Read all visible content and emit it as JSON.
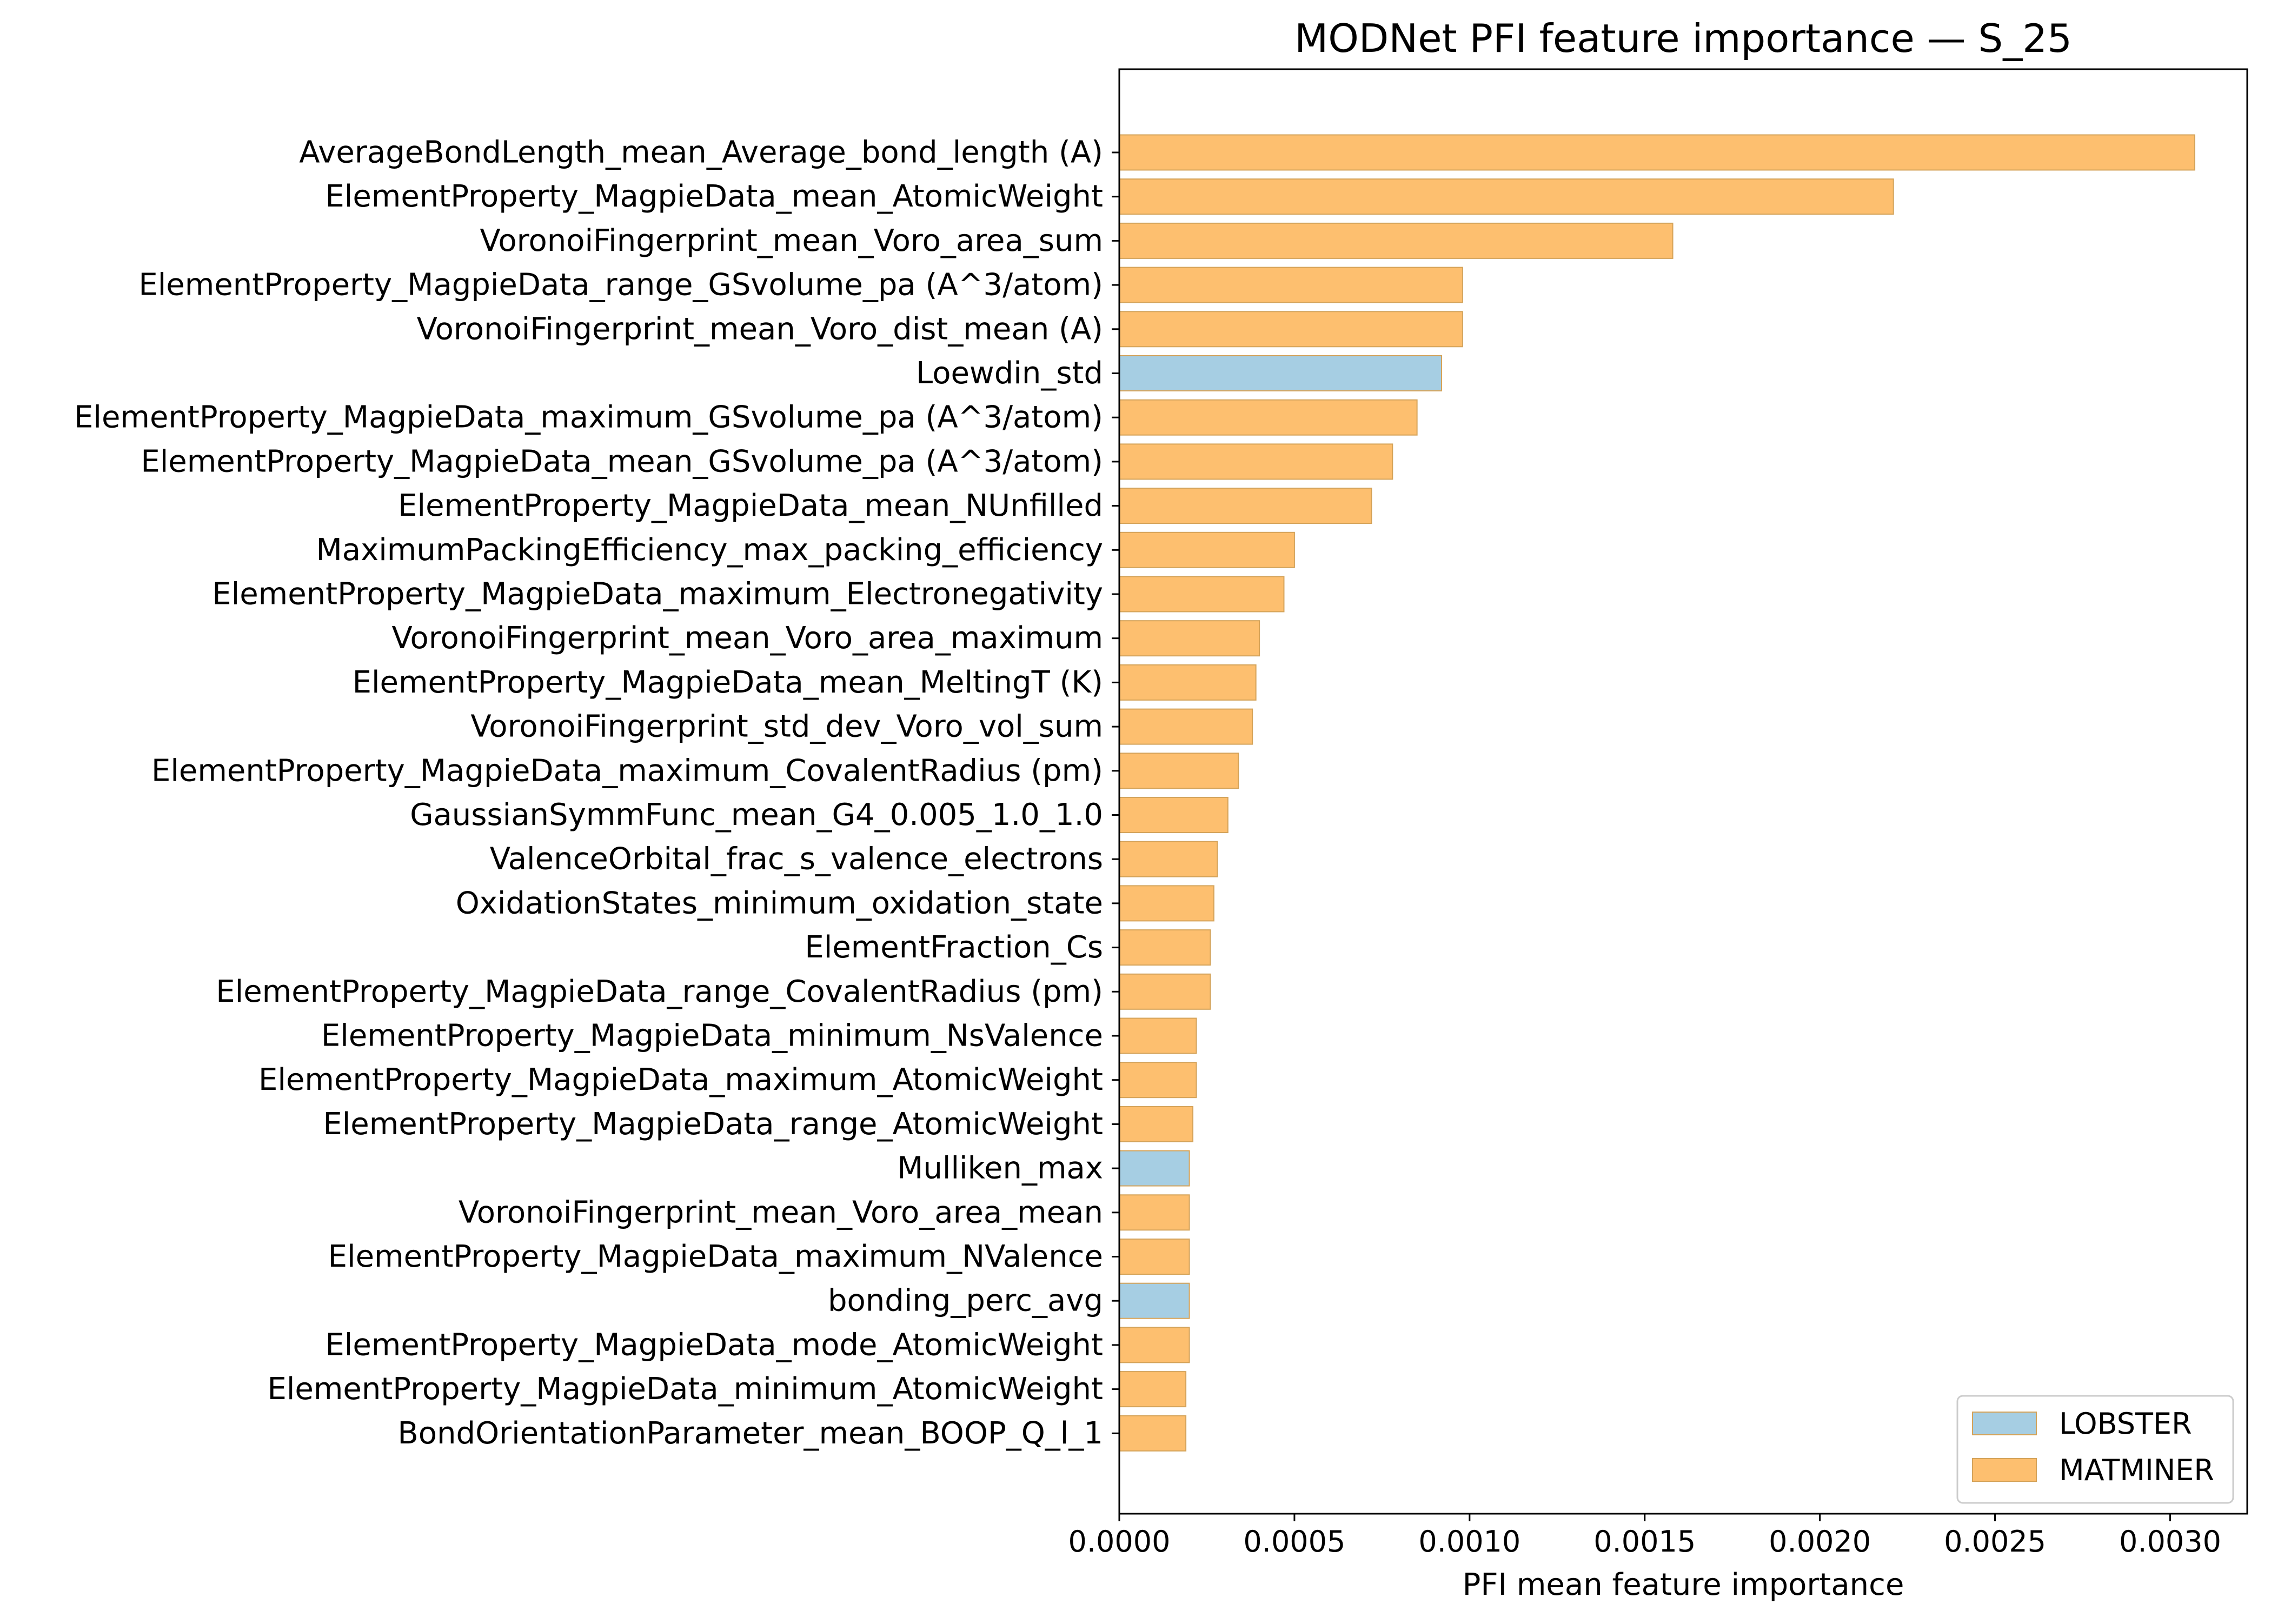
{
  "chart_data": {
    "type": "bar",
    "orientation": "horizontal",
    "title": "MODNet PFI feature importance — S_25",
    "xlabel": "PFI mean feature importance",
    "ylabel": "",
    "xlim": [
      0,
      0.00322
    ],
    "x_ticks": [
      0.0,
      0.0005,
      0.001,
      0.0015,
      0.002,
      0.0025,
      0.003
    ],
    "x_tick_labels": [
      "0.0000",
      "0.0005",
      "0.0010",
      "0.0015",
      "0.0020",
      "0.0025",
      "0.0030"
    ],
    "grid": false,
    "legend": {
      "position": "bottom-right",
      "entries": [
        {
          "name": "LOBSTER",
          "color": "#a6cee3"
        },
        {
          "name": "MATMINER",
          "color": "#fdbf6f"
        }
      ]
    },
    "colors": {
      "LOBSTER": "#a6cee3",
      "MATMINER": "#fdbf6f",
      "bar_edge": "#d4a35a"
    },
    "bars": [
      {
        "label": "AverageBondLength_mean_Average_bond_length (A)",
        "value": 0.00307,
        "group": "MATMINER"
      },
      {
        "label": "ElementProperty_MagpieData_mean_AtomicWeight",
        "value": 0.00221,
        "group": "MATMINER"
      },
      {
        "label": "VoronoiFingerprint_mean_Voro_area_sum",
        "value": 0.00158,
        "group": "MATMINER"
      },
      {
        "label": "ElementProperty_MagpieData_range_GSvolume_pa (A^3/atom)",
        "value": 0.00098,
        "group": "MATMINER"
      },
      {
        "label": "VoronoiFingerprint_mean_Voro_dist_mean (A)",
        "value": 0.00098,
        "group": "MATMINER"
      },
      {
        "label": "Loewdin_std",
        "value": 0.00092,
        "group": "LOBSTER"
      },
      {
        "label": "ElementProperty_MagpieData_maximum_GSvolume_pa (A^3/atom)",
        "value": 0.00085,
        "group": "MATMINER"
      },
      {
        "label": "ElementProperty_MagpieData_mean_GSvolume_pa (A^3/atom)",
        "value": 0.00078,
        "group": "MATMINER"
      },
      {
        "label": "ElementProperty_MagpieData_mean_NUnfilled",
        "value": 0.00072,
        "group": "MATMINER"
      },
      {
        "label": "MaximumPackingEfficiency_max_packing_efficiency",
        "value": 0.0005,
        "group": "MATMINER"
      },
      {
        "label": "ElementProperty_MagpieData_maximum_Electronegativity",
        "value": 0.00047,
        "group": "MATMINER"
      },
      {
        "label": "VoronoiFingerprint_mean_Voro_area_maximum",
        "value": 0.0004,
        "group": "MATMINER"
      },
      {
        "label": "ElementProperty_MagpieData_mean_MeltingT (K)",
        "value": 0.00039,
        "group": "MATMINER"
      },
      {
        "label": "VoronoiFingerprint_std_dev_Voro_vol_sum",
        "value": 0.00038,
        "group": "MATMINER"
      },
      {
        "label": "ElementProperty_MagpieData_maximum_CovalentRadius (pm)",
        "value": 0.00034,
        "group": "MATMINER"
      },
      {
        "label": "GaussianSymmFunc_mean_G4_0.005_1.0_1.0",
        "value": 0.00031,
        "group": "MATMINER"
      },
      {
        "label": "ValenceOrbital_frac_s_valence_electrons",
        "value": 0.00028,
        "group": "MATMINER"
      },
      {
        "label": "OxidationStates_minimum_oxidation_state",
        "value": 0.00027,
        "group": "MATMINER"
      },
      {
        "label": "ElementFraction_Cs",
        "value": 0.00026,
        "group": "MATMINER"
      },
      {
        "label": "ElementProperty_MagpieData_range_CovalentRadius (pm)",
        "value": 0.00026,
        "group": "MATMINER"
      },
      {
        "label": "ElementProperty_MagpieData_minimum_NsValence",
        "value": 0.00022,
        "group": "MATMINER"
      },
      {
        "label": "ElementProperty_MagpieData_maximum_AtomicWeight",
        "value": 0.00022,
        "group": "MATMINER"
      },
      {
        "label": "ElementProperty_MagpieData_range_AtomicWeight",
        "value": 0.00021,
        "group": "MATMINER"
      },
      {
        "label": "Mulliken_max",
        "value": 0.0002,
        "group": "LOBSTER"
      },
      {
        "label": "VoronoiFingerprint_mean_Voro_area_mean",
        "value": 0.0002,
        "group": "MATMINER"
      },
      {
        "label": "ElementProperty_MagpieData_maximum_NValence",
        "value": 0.0002,
        "group": "MATMINER"
      },
      {
        "label": "bonding_perc_avg",
        "value": 0.0002,
        "group": "LOBSTER"
      },
      {
        "label": "ElementProperty_MagpieData_mode_AtomicWeight",
        "value": 0.0002,
        "group": "MATMINER"
      },
      {
        "label": "ElementProperty_MagpieData_minimum_AtomicWeight",
        "value": 0.00019,
        "group": "MATMINER"
      },
      {
        "label": "BondOrientationParameter_mean_BOOP_Q_l_1",
        "value": 0.00019,
        "group": "MATMINER"
      }
    ]
  }
}
